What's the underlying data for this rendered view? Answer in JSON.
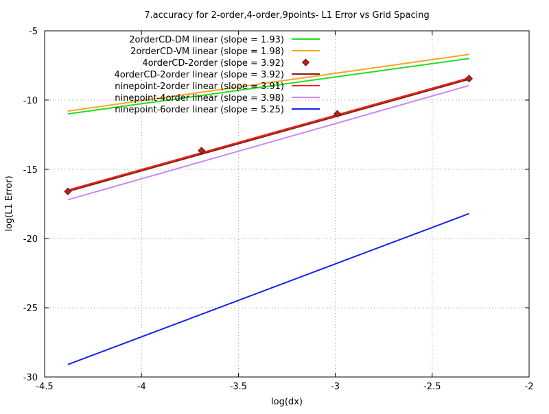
{
  "chart_data": {
    "type": "line",
    "title": "7.accuracy for 2-order,4-order,9points- L1 Error vs Grid Spacing",
    "xlabel": "log(dx)",
    "ylabel": "log(L1 Error)",
    "xlim": [
      -4.5,
      -2
    ],
    "ylim": [
      -30,
      -5
    ],
    "xticks": [
      -4.5,
      -4,
      -3.5,
      -3,
      -2.5,
      -2
    ],
    "yticks": [
      -30,
      -25,
      -20,
      -15,
      -10,
      -5
    ],
    "xtick_labels": [
      "-4.5",
      "-4",
      "-3.5",
      "-3",
      "-2.5",
      "-2"
    ],
    "ytick_labels": [
      "-30",
      "-25",
      "-20",
      "-15",
      "-10",
      "-5"
    ],
    "grid": true,
    "legend_position": "top-left",
    "series": [
      {
        "name": "2orderCD-DM linear (slope = 1.93)",
        "style": "line",
        "color": "#22dd22",
        "x": [
          -4.38,
          -2.31
        ],
        "y": [
          -11.0,
          -7.0
        ]
      },
      {
        "name": "2orderCD-VM linear (slope = 1.98)",
        "style": "line",
        "color": "#f5a623",
        "x": [
          -4.38,
          -2.31
        ],
        "y": [
          -10.8,
          -6.7
        ]
      },
      {
        "name": "4orderCD-2order (slope = 3.92)",
        "style": "points",
        "color": "#b22222",
        "x": [
          -4.38,
          -3.69,
          -2.99,
          -2.31
        ],
        "y": [
          -16.6,
          -13.65,
          -11.0,
          -8.45
        ]
      },
      {
        "name": "4orderCD-2order linear (slope = 3.92)",
        "style": "line",
        "color": "#8b1a1a",
        "x": [
          -4.38,
          -2.31
        ],
        "y": [
          -16.6,
          -8.5
        ]
      },
      {
        "name": "ninepoint-2order linear (slope = 3.91)",
        "style": "line",
        "color": "#ee2211",
        "x": [
          -4.38,
          -2.31
        ],
        "y": [
          -16.5,
          -8.4
        ]
      },
      {
        "name": "ninepoint-4order linear (slope = 3.98)",
        "style": "line",
        "color": "#cc88ee",
        "x": [
          -4.38,
          -2.31
        ],
        "y": [
          -17.2,
          -8.95
        ]
      },
      {
        "name": "ninepoint-6order linear (slope = 5.25)",
        "style": "line",
        "color": "#1122ee",
        "x": [
          -4.38,
          -2.31
        ],
        "y": [
          -29.1,
          -18.2
        ]
      }
    ]
  }
}
